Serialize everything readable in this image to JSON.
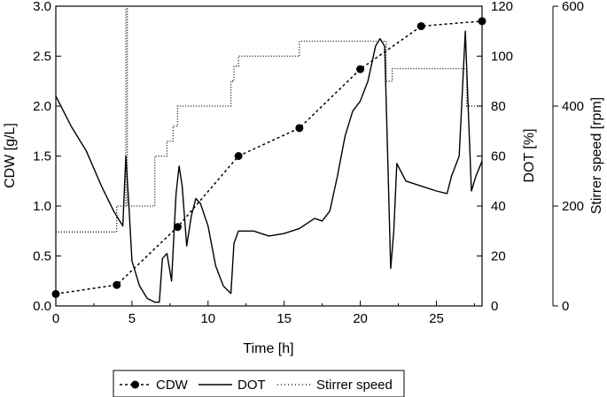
{
  "chart_data": {
    "type": "line",
    "title": "",
    "xlabel": "Time [h]",
    "ylabel_left": "CDW [g/L]",
    "ylabel_right_inner": "DOT [%]",
    "ylabel_right_outer": "Stirrer speed [rpm]",
    "xlim": [
      0,
      28
    ],
    "ylim_left": [
      0,
      3.0
    ],
    "ylim_right_inner": [
      0,
      120
    ],
    "ylim_right_outer": [
      0,
      600
    ],
    "x_ticks": [
      "0",
      "5",
      "10",
      "15",
      "20",
      "25"
    ],
    "y_left_ticks": [
      "0.0",
      "0.5",
      "1.0",
      "1.5",
      "2.0",
      "2.5",
      "3.0"
    ],
    "y_right_inner_ticks": [
      "0",
      "20",
      "40",
      "60",
      "80",
      "100",
      "120"
    ],
    "y_right_outer_ticks": [
      "0",
      "200",
      "400",
      "600"
    ],
    "grid": false,
    "legend_position": "bottom",
    "series": [
      {
        "name": "CDW",
        "axis": "left",
        "style": "dashed-with-markers",
        "x": [
          0,
          4,
          8,
          12,
          16,
          20,
          24,
          28
        ],
        "y": [
          0.12,
          0.21,
          0.79,
          1.5,
          1.78,
          2.37,
          2.8,
          2.85
        ]
      },
      {
        "name": "DOT",
        "axis": "right_inner",
        "style": "solid",
        "x": [
          0,
          1,
          2,
          3,
          3.8,
          4.4,
          4.6,
          4.8,
          5.0,
          5.5,
          6.0,
          6.5,
          6.8,
          7.0,
          7.3,
          7.6,
          7.9,
          8.1,
          8.3,
          8.6,
          8.9,
          9.2,
          9.5,
          10.0,
          10.5,
          11.0,
          11.5,
          11.7,
          12.0,
          13.0,
          14.0,
          15.0,
          16.0,
          17.0,
          17.5,
          18.0,
          18.5,
          19.0,
          19.5,
          20.0,
          20.5,
          21.0,
          21.3,
          21.6,
          21.8,
          22.0,
          22.2,
          22.4,
          23.0,
          24.0,
          25.0,
          25.7,
          26.0,
          26.5,
          26.9,
          27.1,
          27.3,
          27.6,
          28.0
        ],
        "y": [
          84,
          72,
          62,
          48,
          38,
          32,
          60,
          40,
          18,
          8,
          3,
          1.5,
          1.5,
          19,
          21,
          10,
          45,
          56,
          48,
          24,
          36,
          43,
          41,
          32,
          16,
          8,
          5,
          25,
          30,
          30,
          28,
          29,
          31,
          35,
          34,
          38,
          52,
          68,
          78,
          82,
          90,
          104,
          107,
          104,
          60,
          15,
          30,
          57,
          50,
          48,
          46,
          45,
          52,
          60,
          110,
          78,
          46,
          52,
          58
        ]
      },
      {
        "name": "Stirrer speed",
        "axis": "right_outer",
        "style": "dotted",
        "x": [
          0,
          4.0,
          4.0,
          4.6,
          4.6,
          4.7,
          4.7,
          6.5,
          6.5,
          7.3,
          7.3,
          7.7,
          7.7,
          8.0,
          8.0,
          11.5,
          11.5,
          11.7,
          11.7,
          12.0,
          12.0,
          16.0,
          16.0,
          21.7,
          21.7,
          22.1,
          22.1,
          27.0,
          27.0,
          28.0
        ],
        "y": [
          148,
          148,
          200,
          200,
          595,
          595,
          200,
          200,
          300,
          300,
          330,
          330,
          360,
          360,
          400,
          400,
          450,
          450,
          480,
          480,
          500,
          500,
          530,
          530,
          450,
          450,
          475,
          475,
          400,
          400
        ]
      }
    ]
  }
}
